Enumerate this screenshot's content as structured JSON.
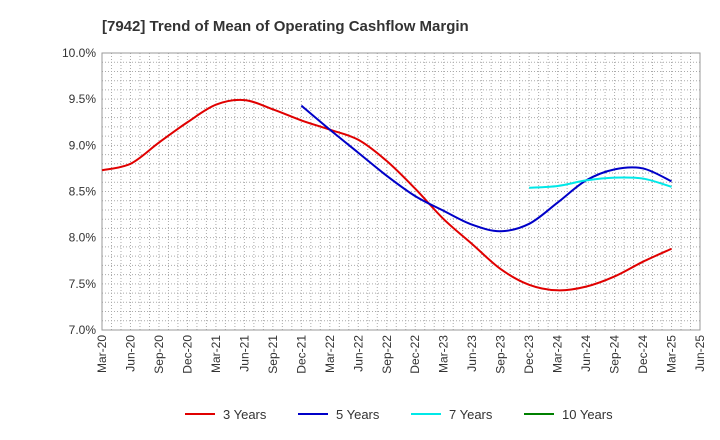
{
  "chart_data": {
    "type": "line",
    "title": "[7942]  Trend of Mean of Operating Cashflow Margin",
    "xlabel": "",
    "ylabel": "",
    "ylim": [
      7.0,
      10.0
    ],
    "y_ticks": [
      "7.0%",
      "7.5%",
      "8.0%",
      "8.5%",
      "9.0%",
      "9.5%",
      "10.0%"
    ],
    "y_tick_values": [
      7.0,
      7.5,
      8.0,
      8.5,
      9.0,
      9.5,
      10.0
    ],
    "x_ticks": [
      "Mar-20",
      "Jun-20",
      "Sep-20",
      "Dec-20",
      "Mar-21",
      "Jun-21",
      "Sep-21",
      "Dec-21",
      "Mar-22",
      "Jun-22",
      "Sep-22",
      "Dec-22",
      "Mar-23",
      "Jun-23",
      "Sep-23",
      "Dec-23",
      "Mar-24",
      "Jun-24",
      "Sep-24",
      "Dec-24",
      "Mar-25",
      "Jun-25"
    ],
    "grid": true,
    "legend_position": "bottom",
    "series": [
      {
        "name": "3 Years",
        "color": "#e00000",
        "x": [
          "Mar-20",
          "Jun-20",
          "Sep-20",
          "Dec-20",
          "Mar-21",
          "Jun-21",
          "Sep-21",
          "Dec-21",
          "Mar-22",
          "Jun-22",
          "Sep-22",
          "Dec-22",
          "Mar-23",
          "Jun-23",
          "Sep-23",
          "Dec-23",
          "Mar-24",
          "Jun-24",
          "Sep-24",
          "Dec-24",
          "Mar-25"
        ],
        "values": [
          8.73,
          8.8,
          9.03,
          9.25,
          9.44,
          9.49,
          9.39,
          9.27,
          9.17,
          9.06,
          8.83,
          8.53,
          8.2,
          7.93,
          7.66,
          7.49,
          7.43,
          7.47,
          7.58,
          7.74,
          7.88
        ]
      },
      {
        "name": "5 Years",
        "color": "#0000c8",
        "x": [
          "Dec-21",
          "Mar-22",
          "Jun-22",
          "Sep-22",
          "Dec-22",
          "Mar-23",
          "Jun-23",
          "Sep-23",
          "Dec-23",
          "Mar-24",
          "Jun-24",
          "Sep-24",
          "Dec-24",
          "Mar-25"
        ],
        "values": [
          9.43,
          9.17,
          8.92,
          8.67,
          8.45,
          8.29,
          8.14,
          8.07,
          8.15,
          8.38,
          8.62,
          8.74,
          8.75,
          8.61
        ]
      },
      {
        "name": "7 Years",
        "color": "#00e8e8",
        "x": [
          "Dec-23",
          "Mar-24",
          "Jun-24",
          "Sep-24",
          "Dec-24",
          "Mar-25"
        ],
        "values": [
          8.54,
          8.56,
          8.62,
          8.65,
          8.64,
          8.55
        ]
      },
      {
        "name": "10 Years",
        "color": "#008000",
        "x": [],
        "values": []
      }
    ]
  }
}
